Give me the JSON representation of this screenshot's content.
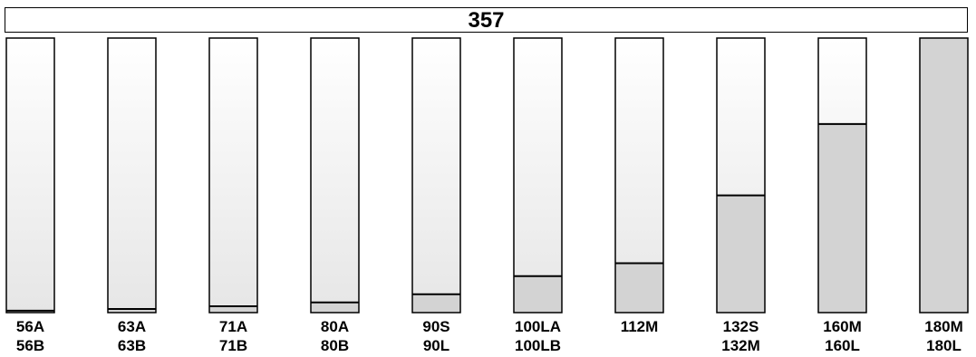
{
  "header": {
    "title": "357"
  },
  "chart_data": {
    "type": "bar",
    "title": "357",
    "ylim": [
      0,
      100
    ],
    "categories": [
      {
        "top": "56A",
        "bottom": "56B"
      },
      {
        "top": "63A",
        "bottom": "63B"
      },
      {
        "top": "71A",
        "bottom": "71B"
      },
      {
        "top": "80A",
        "bottom": "80B"
      },
      {
        "top": "90S",
        "bottom": "90L"
      },
      {
        "top": "100LA",
        "bottom": "100LB"
      },
      {
        "top": "112M",
        "bottom": ""
      },
      {
        "top": "132S",
        "bottom": "132M"
      },
      {
        "top": "160M",
        "bottom": "160L"
      },
      {
        "top": "180M",
        "bottom": "180L"
      }
    ],
    "values": [
      0.7,
      1.3,
      2.3,
      3.7,
      6.7,
      13.3,
      18.0,
      42.7,
      68.7,
      100
    ],
    "colors": {
      "fill": "#d3d3d3",
      "empty_top": "#ffffff",
      "empty_bottom": "#e6e6e6",
      "stroke": "#000000"
    }
  }
}
